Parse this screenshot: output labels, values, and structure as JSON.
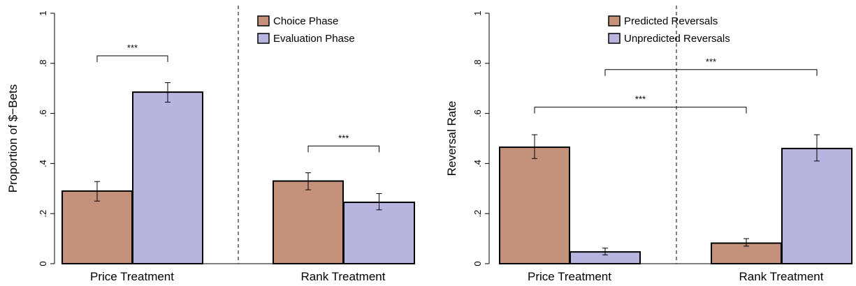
{
  "chart_data": [
    {
      "type": "bar",
      "ylabel": "Proportion of $−Bets",
      "ylim": [
        0,
        1
      ],
      "yticks": [
        {
          "value": 0,
          "label": "0"
        },
        {
          "value": 0.2,
          "label": ".2"
        },
        {
          "value": 0.4,
          "label": ".4"
        },
        {
          "value": 0.6,
          "label": ".6"
        },
        {
          "value": 0.8,
          "label": ".8"
        },
        {
          "value": 1,
          "label": "1"
        }
      ],
      "categories": [
        "Price Treatment",
        "Rank Treatment"
      ],
      "series": [
        {
          "name": "Choice Phase",
          "color": "#c4927b",
          "values": [
            0.29,
            0.33
          ],
          "err_low": [
            0.25,
            0.295
          ],
          "err_high": [
            0.328,
            0.363
          ]
        },
        {
          "name": "Evaluation Phase",
          "color": "#b7b4e0",
          "values": [
            0.685,
            0.245
          ],
          "err_low": [
            0.645,
            0.215
          ],
          "err_high": [
            0.723,
            0.28
          ]
        }
      ],
      "significance": [
        {
          "label": "***",
          "from": [
            0,
            0
          ],
          "to": [
            0,
            1
          ],
          "level": 0.83
        },
        {
          "label": "***",
          "from": [
            1,
            0
          ],
          "to": [
            1,
            1
          ],
          "level": 0.47
        }
      ],
      "divider": "dashed",
      "legend": "top-right",
      "grid": false
    },
    {
      "type": "bar",
      "ylabel": "Reversal Rate",
      "ylim": [
        0,
        1
      ],
      "yticks": [
        {
          "value": 0,
          "label": "0"
        },
        {
          "value": 0.2,
          "label": ".2"
        },
        {
          "value": 0.4,
          "label": ".4"
        },
        {
          "value": 0.6,
          "label": ".6"
        },
        {
          "value": 0.8,
          "label": ".8"
        },
        {
          "value": 1,
          "label": "1"
        }
      ],
      "categories": [
        "Price Treatment",
        "Rank Treatment"
      ],
      "series": [
        {
          "name": "Predicted Reversals",
          "color": "#c4927b",
          "values": [
            0.465,
            0.082
          ],
          "err_low": [
            0.42,
            0.07
          ],
          "err_high": [
            0.515,
            0.1
          ]
        },
        {
          "name": "Unpredicted Reversals",
          "color": "#b7b4e0",
          "values": [
            0.047,
            0.46
          ],
          "err_low": [
            0.035,
            0.41
          ],
          "err_high": [
            0.062,
            0.515
          ]
        }
      ],
      "significance": [
        {
          "label": "***",
          "from": [
            0,
            0
          ],
          "to": [
            1,
            0
          ],
          "level": 0.625
        },
        {
          "label": "***",
          "from": [
            0,
            1
          ],
          "to": [
            1,
            1
          ],
          "level": 0.775
        }
      ],
      "divider": "dashed",
      "legend": "top-right",
      "grid": false
    }
  ]
}
